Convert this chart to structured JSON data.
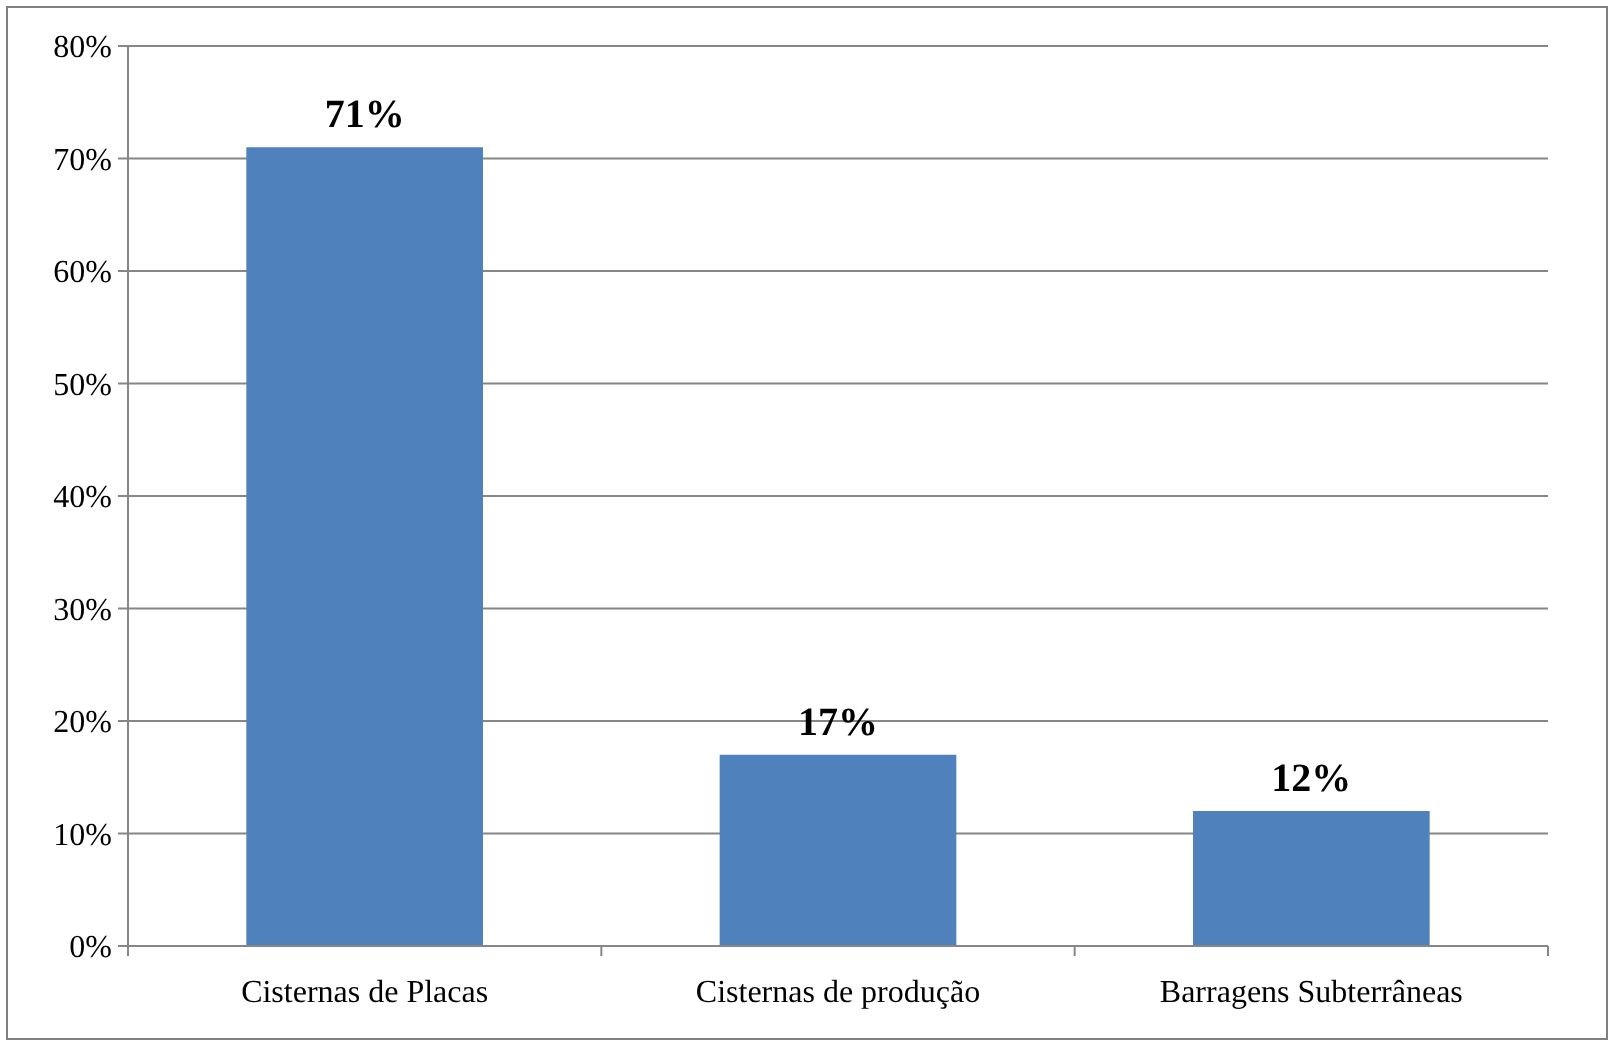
{
  "chart_data": {
    "type": "bar",
    "categories": [
      "Cisternas de Placas",
      "Cisternas de produção",
      "Barragens Subterrâneas"
    ],
    "values": [
      71,
      17,
      12
    ],
    "color": "#4f81bd",
    "value_labels": [
      "71%",
      "17%",
      "12%"
    ],
    "ylim": [
      0,
      80
    ],
    "yticks": [
      {
        "value": 0,
        "label": "0%"
      },
      {
        "value": 10,
        "label": "10%"
      },
      {
        "value": 20,
        "label": "20%"
      },
      {
        "value": 30,
        "label": "30%"
      },
      {
        "value": 40,
        "label": "40%"
      },
      {
        "value": 50,
        "label": "50%"
      },
      {
        "value": 60,
        "label": "60%"
      },
      {
        "value": 70,
        "label": "70%"
      },
      {
        "value": 80,
        "label": "80%"
      }
    ],
    "grid": "y"
  }
}
